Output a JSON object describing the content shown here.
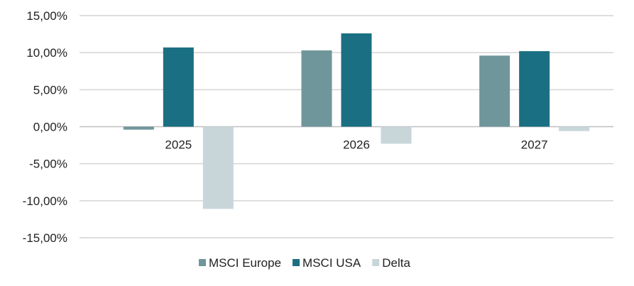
{
  "chart_data": {
    "type": "bar",
    "categories": [
      "2025",
      "2026",
      "2027"
    ],
    "series": [
      {
        "name": "MSCI Europe",
        "values": [
          -0.4,
          10.3,
          9.6
        ],
        "color": "#6f969b"
      },
      {
        "name": "MSCI USA",
        "values": [
          10.7,
          12.6,
          10.2
        ],
        "color": "#1b6f82"
      },
      {
        "name": "Delta",
        "values": [
          -11.1,
          -2.3,
          -0.6
        ],
        "color": "#c8d6da"
      }
    ],
    "yticks": [
      {
        "value": 15,
        "label": "15,00%"
      },
      {
        "value": 10,
        "label": "10,00%"
      },
      {
        "value": 5,
        "label": "5,00%"
      },
      {
        "value": 0,
        "label": "0,00%"
      },
      {
        "value": -5,
        "label": "-5,00%"
      },
      {
        "value": -10,
        "label": "-10,00%"
      },
      {
        "value": -15,
        "label": "-15,00%"
      }
    ],
    "ylim": [
      -15,
      15
    ],
    "grid": true,
    "legend_position": "bottom"
  }
}
